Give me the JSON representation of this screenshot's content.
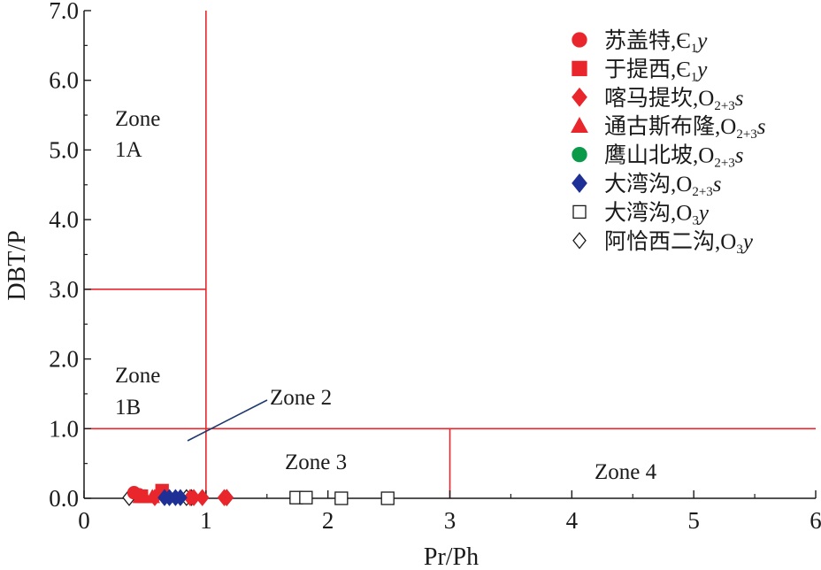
{
  "chart_data": {
    "type": "scatter",
    "xlabel": "Pr/Ph",
    "ylabel": "DBT/P",
    "xlim": [
      0,
      6
    ],
    "ylim": [
      0,
      7
    ],
    "xticks": [
      "0",
      "1",
      "2",
      "3",
      "4",
      "5",
      "6"
    ],
    "yticks": [
      "0.0",
      "1.0",
      "2.0",
      "3.0",
      "4.0",
      "5.0",
      "6.0",
      "7.0"
    ],
    "grid": false,
    "legend_position": "top-right",
    "boundary_color": "#e8262c",
    "leader_color": "#1f3a6e",
    "zone_boundaries": [
      {
        "x": [
          1,
          1
        ],
        "y": [
          0,
          7
        ]
      },
      {
        "x": [
          0,
          1
        ],
        "y": [
          3,
          3
        ]
      },
      {
        "x": [
          0,
          6
        ],
        "y": [
          1,
          1
        ]
      },
      {
        "x": [
          3,
          3
        ],
        "y": [
          0,
          1
        ]
      }
    ],
    "zones": [
      {
        "line1": "Zone",
        "line2": "1A"
      },
      {
        "line1": "Zone",
        "line2": "1B"
      },
      {
        "line1": "Zone 2"
      },
      {
        "line1": "Zone 3"
      },
      {
        "line1": "Zone 4"
      }
    ],
    "series": [
      {
        "name": "苏盖特,Є",
        "name_sub": "1",
        "name_suffix": "y",
        "marker": "circle",
        "filled": true,
        "color": "#e8262c",
        "points": [
          [
            0.41,
            0.08
          ],
          [
            0.45,
            0.05
          ]
        ]
      },
      {
        "name": "于提西,Є",
        "name_sub": "1",
        "name_suffix": "y",
        "marker": "square",
        "filled": true,
        "color": "#e8262c",
        "points": [
          [
            0.64,
            0.11
          ],
          [
            0.47,
            0.03
          ]
        ]
      },
      {
        "name": "喀马提坎,O",
        "name_sub": "2+3",
        "name_suffix": "s",
        "marker": "diamond",
        "filled": true,
        "color": "#e8262c",
        "points": [
          [
            0.58,
            0.01
          ],
          [
            0.87,
            0.01
          ],
          [
            0.9,
            0.01
          ],
          [
            0.97,
            0.01
          ],
          [
            1.15,
            0.01
          ],
          [
            1.17,
            0.01
          ]
        ]
      },
      {
        "name": "通古斯布隆,O",
        "name_sub": "2+3",
        "name_suffix": "s",
        "marker": "triangle",
        "filled": true,
        "color": "#e8262c",
        "points": [
          [
            0.46,
            0.02
          ],
          [
            0.5,
            0.02
          ],
          [
            0.56,
            0.02
          ]
        ]
      },
      {
        "name": "鹰山北坡,O",
        "name_sub": "2+3",
        "name_suffix": "s",
        "marker": "circle",
        "filled": true,
        "color": "#0a9a4a",
        "points": []
      },
      {
        "name": "大湾沟,O",
        "name_sub": "2+3",
        "name_suffix": "s",
        "marker": "diamond",
        "filled": true,
        "color": "#1e2f95",
        "points": [
          [
            0.66,
            0.01
          ],
          [
            0.7,
            0.01
          ],
          [
            0.75,
            0.01
          ],
          [
            0.79,
            0.01
          ]
        ]
      },
      {
        "name": "大湾沟,O",
        "name_sub": "3",
        "name_suffix": "y",
        "marker": "square",
        "filled": false,
        "color": "#1a1a1a",
        "points": [
          [
            1.74,
            0.01
          ],
          [
            1.82,
            0.01
          ],
          [
            2.11,
            0.0
          ],
          [
            2.49,
            0.0
          ]
        ]
      },
      {
        "name": "阿恰西二沟,O",
        "name_sub": "3",
        "name_suffix": "y",
        "marker": "diamond",
        "filled": false,
        "color": "#1a1a1a",
        "points": [
          [
            0.37,
            0.01
          ],
          [
            0.84,
            0.01
          ],
          [
            0.88,
            0.01
          ],
          [
            1.17,
            0.01
          ]
        ]
      }
    ]
  }
}
